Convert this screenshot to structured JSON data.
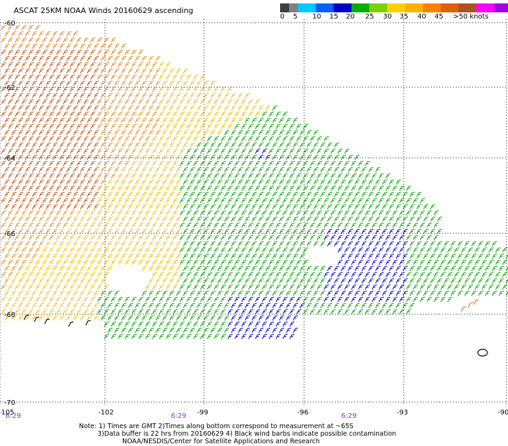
{
  "title": "ASCAT 25KM NOAA Winds 20160629 ascending",
  "legend": {
    "colors": [
      "#404040",
      "#808080",
      "#00c8ff",
      "#0060ff",
      "#0000c0",
      "#00b000",
      "#80d000",
      "#ffd000",
      "#ffb000",
      "#ff8000",
      "#e06000",
      "#b05020",
      "#ff00ff",
      "#a000e0",
      "#600090"
    ],
    "labels": [
      "0",
      "5",
      "10",
      "15",
      "20",
      "25",
      "30",
      "35",
      "40",
      "45",
      ">50 knots"
    ]
  },
  "latitudes": [
    "-60",
    "-62",
    "-64",
    "-66",
    "-68",
    "-70"
  ],
  "longitudes": [
    "-105",
    "-102",
    "-99",
    "-96",
    "-93",
    "-90"
  ],
  "times": [
    "6:29",
    "6:29",
    "6:29"
  ],
  "notes": [
    "Note: 1) Times are GMT 2)Times along bottom correspond to measurement at ~65S",
    "3)Data buffer is 22 hrs from 20160629 4) Black wind barbs indicate possible contamination",
    "NOAA/NESDIS/Center for Satellite Applications and Research"
  ]
}
